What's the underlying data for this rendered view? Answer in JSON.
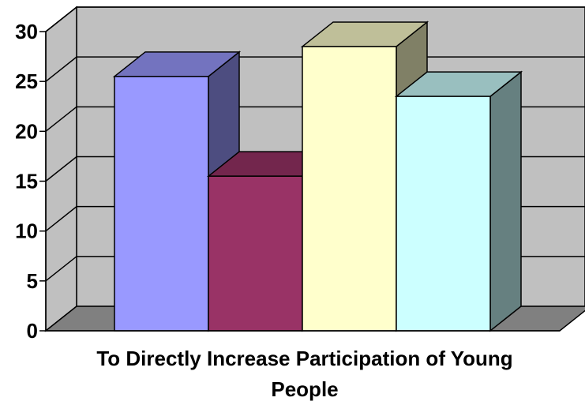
{
  "chart_data": {
    "type": "bar",
    "style": "3d-clustered-columns",
    "xlabel_lines": [
      "To Directly Increase Participation of Young",
      "People"
    ],
    "ylim": [
      0,
      30
    ],
    "yticks": [
      0,
      5,
      10,
      15,
      20,
      25,
      30
    ],
    "grid": true,
    "legend": "none",
    "series": [
      {
        "values": [
          25.5
        ],
        "color": "#9999ff"
      },
      {
        "values": [
          15.5
        ],
        "color": "#993366"
      },
      {
        "values": [
          28.5
        ],
        "color": "#ffffcc"
      },
      {
        "values": [
          23.5
        ],
        "color": "#ccffff"
      }
    ],
    "colors": {
      "wall": "#c0c0c0",
      "floor": "#808080",
      "gridline": "#000000"
    }
  }
}
